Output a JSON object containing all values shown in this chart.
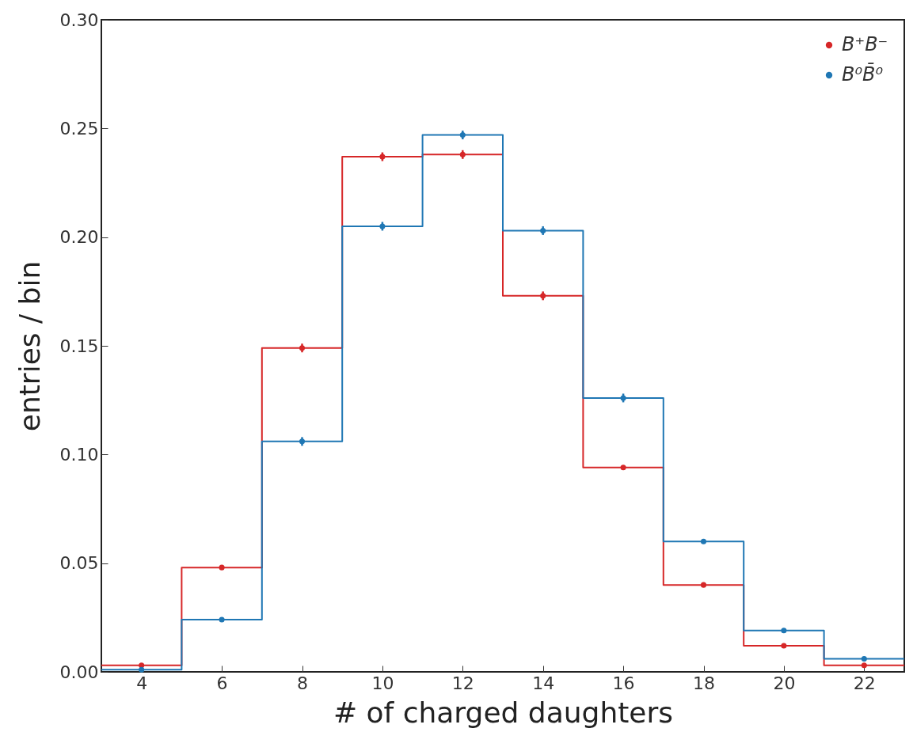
{
  "chart_data": {
    "type": "histogram",
    "xlabel": "# of charged daughters",
    "ylabel": "entries / bin",
    "bins": [
      3,
      5,
      7,
      9,
      11,
      13,
      15,
      17,
      19,
      21,
      23
    ],
    "series": [
      {
        "color": "#d62728",
        "values": [
          0.003,
          0.048,
          0.149,
          0.237,
          0.238,
          0.173,
          0.094,
          0.04,
          0.012,
          0.003
        ]
      },
      {
        "color": "#1f77b4",
        "values": [
          0.001,
          0.024,
          0.106,
          0.205,
          0.247,
          0.203,
          0.126,
          0.06,
          0.019,
          0.006
        ]
      },
      {
        "type": "scatter",
        "name": "B⁺B⁻",
        "color": "#d62728",
        "x": [
          4,
          6,
          8,
          10,
          12,
          14,
          16,
          18,
          20,
          22
        ],
        "values": [
          0.003,
          0.048,
          0.149,
          0.237,
          0.238,
          0.173,
          0.094,
          0.04,
          0.012,
          0.003
        ],
        "errors": [
          0.001,
          0.001,
          0.002,
          0.002,
          0.002,
          0.002,
          0.001,
          0.001,
          0.001,
          0.001
        ]
      },
      {
        "type": "scatter",
        "name": "B⁰B̄⁰",
        "color": "#1f77b4",
        "x": [
          4,
          6,
          8,
          10,
          12,
          14,
          16,
          18,
          20,
          22
        ],
        "values": [
          0.001,
          0.024,
          0.106,
          0.205,
          0.247,
          0.203,
          0.126,
          0.06,
          0.019,
          0.006
        ],
        "errors": [
          null,
          0.001,
          0.002,
          0.002,
          0.002,
          0.002,
          0.002,
          0.001,
          0.001,
          0.001
        ]
      }
    ],
    "xlim": [
      3,
      23
    ],
    "xticks": [
      4,
      6,
      8,
      10,
      12,
      14,
      16,
      18,
      20,
      22
    ],
    "ylim": [
      0,
      0.3
    ],
    "yticks": [
      {
        "value": 0,
        "label": "0.00"
      },
      {
        "value": 0.05,
        "label": "0.05"
      },
      {
        "value": 0.1,
        "label": "0.10"
      },
      {
        "value": 0.15,
        "label": "0.15"
      },
      {
        "value": 0.2,
        "label": "0.20"
      },
      {
        "value": 0.25,
        "label": "0.25"
      },
      {
        "value": 0.3,
        "label": "0.30"
      }
    ],
    "grid": false,
    "legend": "top right",
    "marker": "circle",
    "line_style": "solid"
  }
}
